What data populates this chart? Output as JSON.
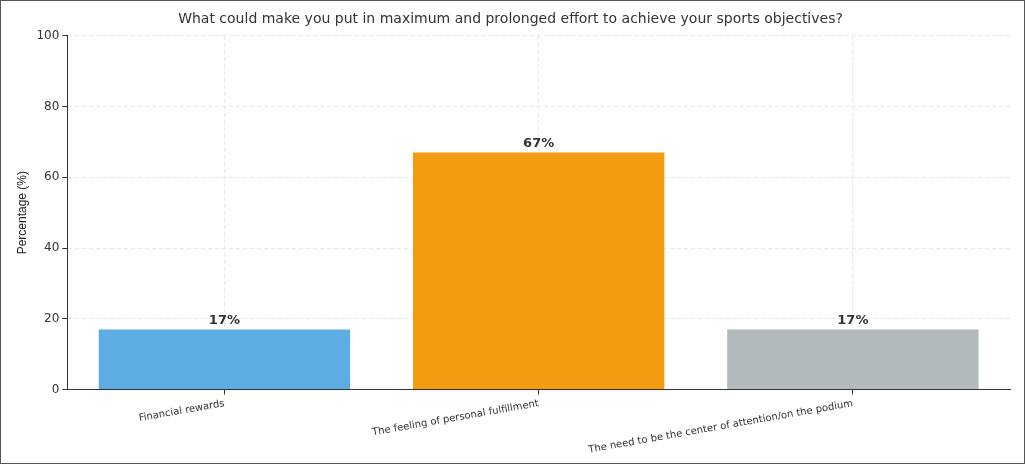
{
  "chart_data": {
    "type": "bar",
    "title": "What could make you put in maximum and prolonged effort to achieve your sports objectives?",
    "ylabel": "Percentage (%)",
    "categories": [
      "Financial rewards",
      "The feeling of personal fulfillment",
      "The need to be the center of attention/on the podium"
    ],
    "values": [
      17,
      67,
      17
    ],
    "colors": [
      "#5dade2",
      "#f39c12",
      "#b2babb"
    ],
    "value_labels": [
      "17%",
      "67%",
      "17%"
    ],
    "ylim": [
      0,
      100
    ],
    "yticks": [
      0,
      20,
      40,
      60,
      80,
      100
    ],
    "grid": true
  }
}
